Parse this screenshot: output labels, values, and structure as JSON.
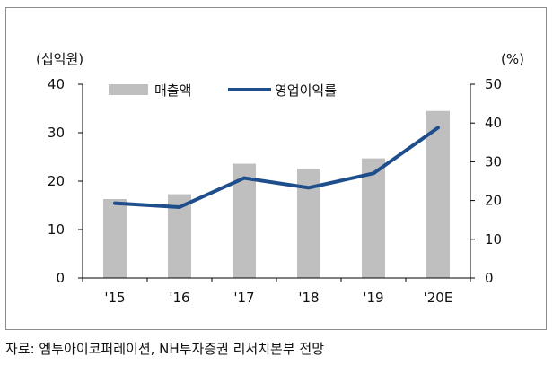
{
  "chart_data": {
    "type": "bar+line",
    "categories": [
      "'15",
      "'16",
      "'17",
      "'18",
      "'19",
      "'20E"
    ],
    "series": [
      {
        "name": "매출액",
        "type": "bar",
        "axis": "left",
        "color": "#bfbfbf",
        "values": [
          16.3,
          17.3,
          23.6,
          22.6,
          24.7,
          34.5
        ]
      },
      {
        "name": "영업이익률",
        "type": "line",
        "axis": "right",
        "color": "#1f4e8c",
        "values": [
          19.3,
          18.3,
          25.8,
          23.3,
          27.0,
          38.8
        ]
      }
    ],
    "ylabel_left": "(십억원)",
    "ylabel_right": "(%)",
    "ylim_left": [
      0,
      40
    ],
    "ylim_right": [
      0,
      50
    ],
    "yticks_left": [
      0,
      10,
      20,
      30,
      40
    ],
    "yticks_right": [
      0,
      10,
      20,
      30,
      40,
      50
    ],
    "legend_position": "top-left",
    "grid": false
  },
  "source_note": "자료:  엠투아이코퍼레이션, NH투자증권 리서치본부 전망"
}
